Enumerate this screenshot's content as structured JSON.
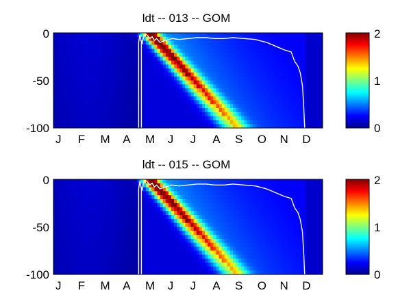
{
  "chart_data": [
    {
      "type": "heatmap",
      "title": "ldt -- 013 -- GOM",
      "xlabel": "",
      "ylabel": "",
      "x_tick_labels": [
        "J",
        "F",
        "M",
        "A",
        "M",
        "J",
        "J",
        "A",
        "S",
        "O",
        "N",
        "D"
      ],
      "x_range_months": [
        0,
        12
      ],
      "y_tick_values": [
        0,
        -50,
        -100
      ],
      "y_tick_labels": [
        "0",
        "-50",
        "-100"
      ],
      "ylim": [
        -100,
        0
      ],
      "colorbar": {
        "colormap": "jet",
        "range": [
          0,
          2
        ],
        "tick_labels": [
          "0",
          "1",
          "2"
        ]
      },
      "bloom_ridge": {
        "surface_peak_month": 4.25,
        "surface_value": 1.95,
        "bottom_month": 8.1,
        "bottom_value": 0.9
      },
      "contour_line": {
        "color": "#ffffff",
        "month": [
          3.8,
          3.8,
          3.85,
          3.9,
          3.95,
          4.0,
          4.1,
          4.2,
          4.3,
          4.4,
          4.5,
          4.6,
          4.75,
          5.0,
          5.3,
          5.6,
          6.0,
          6.4,
          6.8,
          7.2,
          7.6,
          8.0,
          8.5,
          9.0,
          9.5,
          10.0,
          10.3,
          10.6,
          10.75,
          10.9,
          11.0,
          11.1,
          11.15,
          11.2
        ],
        "depth": [
          -100,
          -10,
          -2,
          -8,
          -12,
          -5,
          -1,
          -3,
          -6,
          -4,
          -8,
          -6,
          -10,
          -8,
          -6,
          -7,
          -6,
          -5,
          -5,
          -6,
          -6,
          -5,
          -6,
          -7,
          -10,
          -15,
          -18,
          -20,
          -30,
          -35,
          -42,
          -55,
          -75,
          -100
        ]
      }
    },
    {
      "type": "heatmap",
      "title": "ldt -- 015 -- GOM",
      "xlabel": "",
      "ylabel": "",
      "x_tick_labels": [
        "J",
        "F",
        "M",
        "A",
        "M",
        "J",
        "J",
        "A",
        "S",
        "O",
        "N",
        "D"
      ],
      "x_range_months": [
        0,
        12
      ],
      "y_tick_values": [
        0,
        -50,
        -100
      ],
      "y_tick_labels": [
        "0",
        "-50",
        "-100"
      ],
      "ylim": [
        -100,
        0
      ],
      "colorbar": {
        "colormap": "jet",
        "range": [
          0,
          2
        ],
        "tick_labels": [
          "0",
          "1",
          "2"
        ]
      },
      "bloom_ridge": {
        "surface_peak_month": 4.25,
        "surface_value": 1.95,
        "bottom_month": 8.1,
        "bottom_value": 0.9
      },
      "contour_line": {
        "color": "#ffffff",
        "month": [
          3.8,
          3.8,
          3.85,
          3.9,
          3.95,
          4.0,
          4.1,
          4.2,
          4.3,
          4.4,
          4.5,
          4.6,
          4.75,
          5.0,
          5.3,
          5.6,
          6.0,
          6.4,
          6.8,
          7.2,
          7.6,
          8.0,
          8.5,
          9.0,
          9.5,
          10.0,
          10.3,
          10.6,
          10.75,
          10.9,
          11.0,
          11.1,
          11.15,
          11.2
        ],
        "depth": [
          -100,
          -10,
          -2,
          -8,
          -12,
          -5,
          -1,
          -3,
          -6,
          -4,
          -8,
          -6,
          -10,
          -8,
          -6,
          -7,
          -6,
          -5,
          -5,
          -6,
          -6,
          -5,
          -6,
          -7,
          -10,
          -15,
          -18,
          -20,
          -30,
          -35,
          -42,
          -55,
          -75,
          -100
        ]
      }
    }
  ]
}
